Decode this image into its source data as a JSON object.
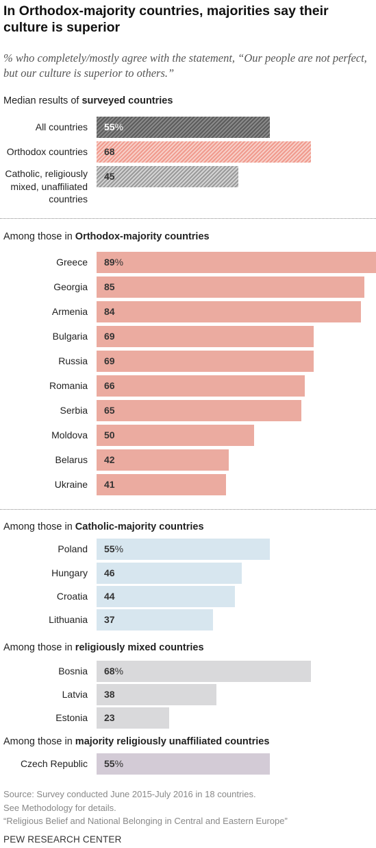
{
  "title": "In Orthodox-majority countries, majorities say their culture is superior",
  "subtitle": "% who completely/mostly agree with the statement, “Our people are not perfect, but our culture is superior to others.”",
  "sections": [
    {
      "lead": "Median results of ",
      "bold": "surveyed countries",
      "tail": ""
    },
    {
      "lead": "Among those in ",
      "bold": "Orthodox-majority countries",
      "tail": ""
    },
    {
      "lead": "Among those in ",
      "bold": "Catholic-majority countries",
      "tail": ""
    },
    {
      "lead": "Among those in ",
      "bold": "religiously mixed countries",
      "tail": ""
    },
    {
      "lead": "Among those in ",
      "bold": "majority religiously unaffiliated countries",
      "tail": ""
    }
  ],
  "colors": {
    "orthodox": "#ebaba0",
    "catholic": "#d7e6ef",
    "mixed": "#d9d9db",
    "unaffiliated": "#d3cbd6",
    "median_all": "#6e6e6e",
    "median_orthodox": "#f4b5aa",
    "median_other": "#b5b5b5"
  },
  "chart_data": {
    "type": "bar",
    "orientation": "horizontal",
    "unit": "%",
    "xlim": [
      0,
      100
    ],
    "groups": [
      {
        "heading": "Median results of surveyed countries",
        "categories": [
          "All countries",
          "Orthodox countries",
          "Catholic, religiously mixed, unaffiliated countries"
        ],
        "values": [
          55,
          68,
          45
        ]
      },
      {
        "heading": "Among those in Orthodox-majority countries",
        "categories": [
          "Greece",
          "Georgia",
          "Armenia",
          "Bulgaria",
          "Russia",
          "Romania",
          "Serbia",
          "Moldova",
          "Belarus",
          "Ukraine"
        ],
        "values": [
          89,
          85,
          84,
          69,
          69,
          66,
          65,
          50,
          42,
          41
        ]
      },
      {
        "heading": "Among those in Catholic-majority countries",
        "categories": [
          "Poland",
          "Hungary",
          "Croatia",
          "Lithuania"
        ],
        "values": [
          55,
          46,
          44,
          37
        ]
      },
      {
        "heading": "Among those in religiously mixed countries",
        "categories": [
          "Bosnia",
          "Latvia",
          "Estonia"
        ],
        "values": [
          68,
          38,
          23
        ]
      },
      {
        "heading": "Among those in majority religiously unaffiliated countries",
        "categories": [
          "Czech Republic"
        ],
        "values": [
          55
        ]
      }
    ]
  },
  "source_lines": [
    "Source: Survey conducted June 2015-July 2016 in 18 countries.",
    "See Methodology for details.",
    "“Religious Belief and National Belonging in Central and Eastern Europe”"
  ],
  "brand": "PEW RESEARCH CENTER"
}
